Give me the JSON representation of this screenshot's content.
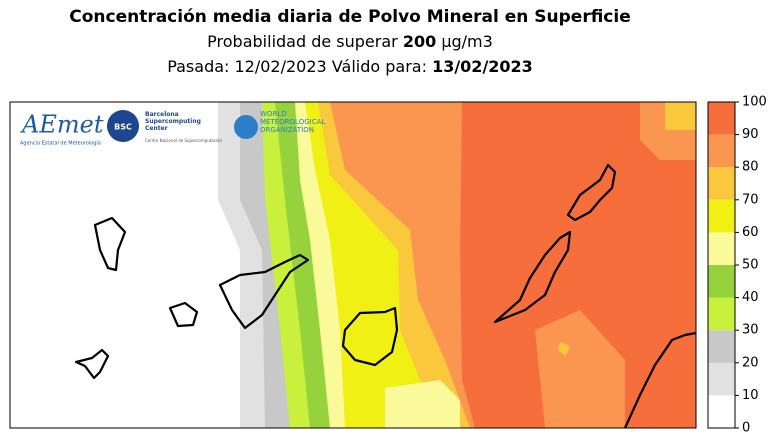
{
  "header": {
    "title": "Concentración media diaria de Polvo Mineral en Superficie",
    "subtitle_prefix": "Probabilidad de superar",
    "subtitle_threshold": "200",
    "subtitle_unit": "µg/m3",
    "run_text": "Pasada: 12/02/2023 Válido para:",
    "valid_date": "13/02/2023"
  },
  "logos": {
    "aemet": "AEmet",
    "aemet_sub": "Agencia Estatal de Meteorología",
    "bsc": "BSC",
    "bsc_name": "Barcelona Supercomputing Center",
    "bsc_sub": "Centro Nacional de Supercomputación",
    "wmo": "WORLD METEOROLOGICAL ORGANIZATION"
  },
  "colorbar": {
    "ticks": [
      0,
      10,
      20,
      30,
      40,
      50,
      60,
      70,
      80,
      90,
      100
    ],
    "colors": [
      "#ffffff",
      "#e1e1e1",
      "#c8c8c8",
      "#c8f03c",
      "#96d23c",
      "#fafa9b",
      "#f0f014",
      "#fac83c",
      "#fa9650",
      "#f56e3c"
    ]
  }
}
